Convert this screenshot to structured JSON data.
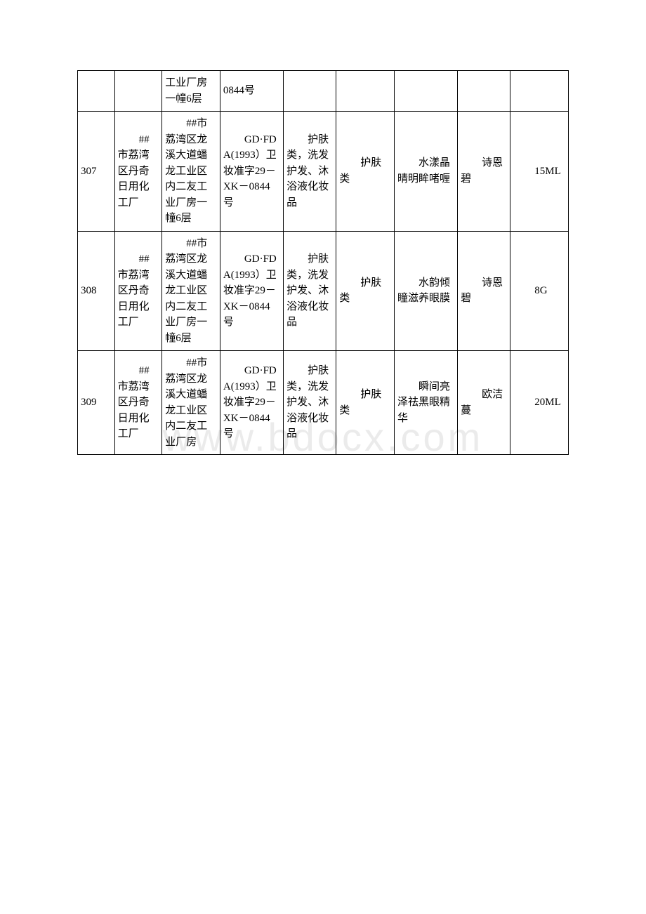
{
  "watermark": "www.bdocx.com",
  "table": {
    "rows": [
      {
        "id": "",
        "company": "",
        "address": "工业厂房一幢6层",
        "license": "0844号",
        "scope": "",
        "category": "",
        "product": "",
        "brand": "",
        "spec": ""
      },
      {
        "id": "307",
        "company": "　　##市荔湾区丹奇日用化工厂",
        "address": "　　##市荔湾区龙溪大道蟠龙工业区内二友工业厂房一幢6层",
        "license": "　　GD·FDA(1993）卫妆准字29－XK－0844号",
        "scope": "　　护肤类，洗发护发、沐浴液化妆品",
        "category": "　　护肤类",
        "product": "　　水漾晶晴明眸啫喱",
        "brand": "　　诗恩碧",
        "spec": "　　15ML"
      },
      {
        "id": "308",
        "company": "　　##市荔湾区丹奇日用化工厂",
        "address": "　　##市荔湾区龙溪大道蟠龙工业区内二友工业厂房一幢6层",
        "license": "　　GD·FDA(1993）卫妆准字29－XK－0844号",
        "scope": "　　护肤类，洗发护发、沐浴液化妆品",
        "category": "　　护肤类",
        "product": "　　水韵倾瞳滋养眼膜",
        "brand": "　　诗恩碧",
        "spec": "　　8G"
      },
      {
        "id": "309",
        "company": "　　##市荔湾区丹奇日用化工厂",
        "address": "　　##市荔湾区龙溪大道蟠龙工业区内二友工业厂房",
        "license": "　　GD·FDA(1993）卫妆准字29－XK－0844号",
        "scope": "　　护肤类，洗发护发、沐浴液化妆品",
        "category": "　　护肤类",
        "product": "　　瞬间亮泽祛黑眼精华",
        "brand": "　　欧洁蔓",
        "spec": "　　20ML"
      }
    ]
  }
}
